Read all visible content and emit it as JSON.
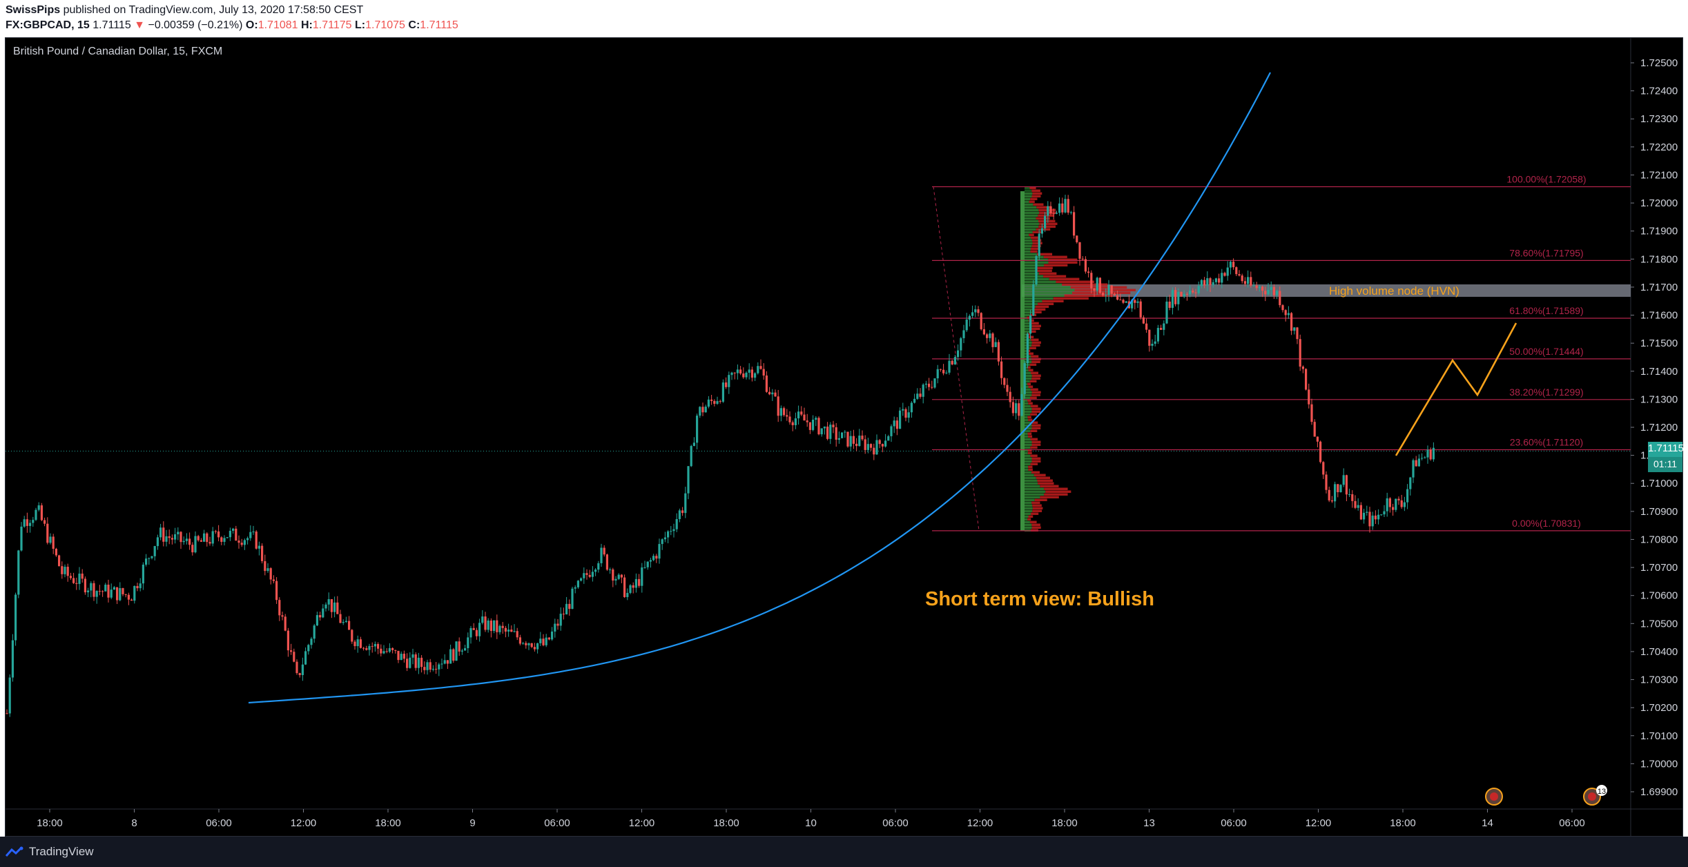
{
  "header": {
    "author": "SwissPips",
    "published": " published on TradingView.com, July 13, 2020 17:58:50 CEST",
    "symbol": "FX:GBPCAD, 15",
    "last": "1.71115",
    "change": "−0.00359 (−0.21%)",
    "o_label": "O:",
    "o_value": "1.71081",
    "h_label": "H:",
    "h_value": "1.71175",
    "l_label": "L:",
    "l_value": "1.71075",
    "c_label": "C:",
    "c_value": "1.71115"
  },
  "chart_title": "British Pound / Canadian Dollar, 15, FXCM",
  "price_axis": [
    "1.72500",
    "1.72400",
    "1.72300",
    "1.72200",
    "1.72100",
    "1.72000",
    "1.71900",
    "1.71800",
    "1.71700",
    "1.71600",
    "1.71500",
    "1.71400",
    "1.71300",
    "1.71200",
    "1.71100",
    "1.71000",
    "1.70900",
    "1.70800",
    "1.70700",
    "1.70600",
    "1.70500",
    "1.70400",
    "1.70300",
    "1.70200",
    "1.70100",
    "1.70000",
    "1.69900"
  ],
  "time_axis": [
    "18:00",
    "8",
    "06:00",
    "12:00",
    "18:00",
    "9",
    "06:00",
    "12:00",
    "18:00",
    "10",
    "06:00",
    "12:00",
    "18:00",
    "13",
    "06:00",
    "12:00",
    "18:00",
    "14",
    "06:00"
  ],
  "current_price": "1.71115",
  "countdown": "01:11",
  "fib_levels": [
    {
      "label": "100.00%(1.72058)",
      "price": 1.72058
    },
    {
      "label": "78.60%(1.71795)",
      "price": 1.71795
    },
    {
      "label": "61.80%(1.71589)",
      "price": 1.71589
    },
    {
      "label": "50.00%(1.71444)",
      "price": 1.71444
    },
    {
      "label": "38.20%(1.71299)",
      "price": 1.71299
    },
    {
      "label": "23.60%(1.71120)",
      "price": 1.7112
    },
    {
      "label": "0.00%(1.70831)",
      "price": 1.70831
    }
  ],
  "annotations": {
    "hvn": "High volume node (HVN)",
    "view": "Short term view: Bullish"
  },
  "event_badge_count": "13",
  "footer": {
    "brand": "TradingView"
  },
  "colors": {
    "up": "#26a69a",
    "down": "#ef5350",
    "fib": "#b2244a",
    "curve": "#2196f3",
    "projection": "#f7a21b",
    "hvn_band": "#787b86"
  }
}
